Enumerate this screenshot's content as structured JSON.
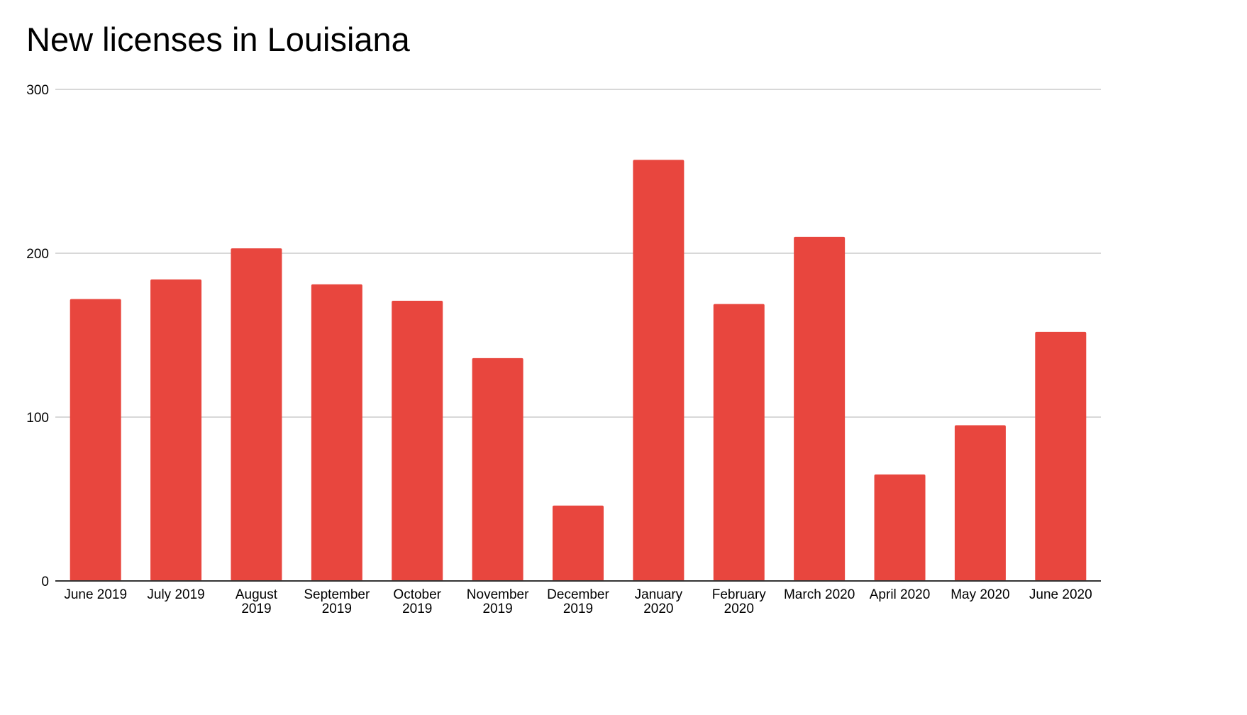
{
  "chart_data": {
    "type": "bar",
    "title": "New licenses in Louisiana",
    "xlabel": "",
    "ylabel": "",
    "ylim": [
      0,
      300
    ],
    "yticks": [
      0,
      100,
      200,
      300
    ],
    "grid": true,
    "bar_color": "#e8463e",
    "categories": [
      [
        "June 2019"
      ],
      [
        "July 2019"
      ],
      [
        "August",
        "2019"
      ],
      [
        "September",
        "2019"
      ],
      [
        "October",
        "2019"
      ],
      [
        "November",
        "2019"
      ],
      [
        "December",
        "2019"
      ],
      [
        "January",
        "2020"
      ],
      [
        "February",
        "2020"
      ],
      [
        "March 2020"
      ],
      [
        "April 2020"
      ],
      [
        "May 2020"
      ],
      [
        "June 2020"
      ]
    ],
    "values": [
      172,
      184,
      203,
      181,
      171,
      136,
      46,
      257,
      169,
      210,
      65,
      95,
      152
    ]
  }
}
